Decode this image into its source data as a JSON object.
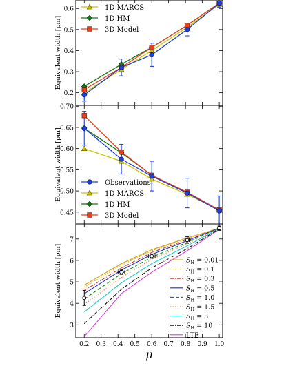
{
  "chart_data": [
    {
      "type": "line",
      "ylabel": "Equivalent width [pm]",
      "xlim": [
        0.15,
        1.02
      ],
      "ylim": [
        0.14,
        0.64
      ],
      "yticks": [
        0.2,
        0.3,
        0.4,
        0.5,
        0.6
      ],
      "ytick_labels": [
        "0.2",
        "0.3",
        "0.4",
        "0.5",
        "0.6"
      ],
      "legend_loc": "top-left",
      "series": [
        {
          "name": "Observations",
          "style": "obs",
          "color": "#1f3fd8",
          "x": [
            0.2,
            0.42,
            0.6,
            0.81,
            1.0
          ],
          "y": [
            0.19,
            0.32,
            0.38,
            0.5,
            0.625
          ],
          "err": [
            0.03,
            0.04,
            0.055,
            0.03,
            0.02
          ]
        },
        {
          "name": "1D MARCS",
          "style": "marcs",
          "color": "#c9c400",
          "x": [
            0.2,
            0.42,
            0.6,
            0.81,
            1.0
          ],
          "y": [
            0.2,
            0.31,
            0.4,
            0.51,
            0.62
          ]
        },
        {
          "name": "1D HM",
          "style": "hm",
          "color": "#117a11",
          "x": [
            0.2,
            0.42,
            0.6,
            0.81,
            1.0
          ],
          "y": [
            0.23,
            0.335,
            0.415,
            0.52,
            0.625
          ]
        },
        {
          "name": "3D Model",
          "style": "model3d",
          "color": "#e8401c",
          "x": [
            0.2,
            0.42,
            0.6,
            0.81,
            1.0
          ],
          "y": [
            0.215,
            0.32,
            0.415,
            0.52,
            0.625
          ]
        }
      ]
    },
    {
      "type": "line",
      "ylabel": "Equivalent width [pm]",
      "xlim": [
        0.15,
        1.02
      ],
      "ylim": [
        0.422,
        0.702
      ],
      "yticks": [
        0.45,
        0.5,
        0.55,
        0.6,
        0.65,
        0.7
      ],
      "ytick_labels": [
        "0.45",
        "0.50",
        "0.55",
        "0.60",
        "0.65",
        "0.70"
      ],
      "legend_loc": "bottom-left",
      "series": [
        {
          "name": "Observations",
          "style": "obs",
          "color": "#1f3fd8",
          "x": [
            0.2,
            0.42,
            0.6,
            0.81,
            1.0
          ],
          "y": [
            0.648,
            0.575,
            0.535,
            0.495,
            0.453
          ],
          "err": [
            0.04,
            0.035,
            0.035,
            0.035,
            0.035
          ]
        },
        {
          "name": "1D MARCS",
          "style": "marcs",
          "color": "#c9c400",
          "x": [
            0.2,
            0.42,
            0.6,
            0.81,
            1.0
          ],
          "y": [
            0.6,
            0.57,
            0.528,
            0.492,
            0.455
          ]
        },
        {
          "name": "1D HM",
          "style": "hm",
          "color": "#117a11",
          "x": [
            0.2,
            0.42,
            0.6,
            0.81,
            1.0
          ],
          "y": [
            0.648,
            0.59,
            0.537,
            0.495,
            0.455
          ]
        },
        {
          "name": "3D Model",
          "style": "model3d",
          "color": "#e8401c",
          "x": [
            0.2,
            0.42,
            0.6,
            0.81,
            1.0
          ],
          "y": [
            0.678,
            0.592,
            0.537,
            0.497,
            0.455
          ]
        }
      ]
    },
    {
      "type": "line",
      "xlabel": "μ",
      "ylabel": "Equivalent width [pm]",
      "xlim": [
        0.15,
        1.02
      ],
      "ylim": [
        2.4,
        7.7
      ],
      "xticks": [
        0.2,
        0.3,
        0.4,
        0.5,
        0.6,
        0.7,
        0.8,
        0.9,
        1.0
      ],
      "xtick_labels": [
        "0.2",
        "0.3",
        "0.4",
        "0.5",
        "0.6",
        "0.7",
        "0.8",
        "0.9",
        "1.0"
      ],
      "yticks": [
        3,
        4,
        5,
        6,
        7
      ],
      "ytick_labels": [
        "3",
        "4",
        "5",
        "6",
        "7"
      ],
      "legend_loc": "bottom-right",
      "observations": {
        "x": [
          0.2,
          0.42,
          0.6,
          0.81,
          1.0
        ],
        "y": [
          4.25,
          5.45,
          6.2,
          6.95,
          7.5
        ],
        "xerr": [
          0.005,
          0.02,
          0.02,
          0.012,
          0.005
        ],
        "yerr": [
          0.35,
          0.1,
          0.1,
          0.15,
          0.1
        ]
      },
      "series": [
        {
          "name": "0.01",
          "color": "#d4a300",
          "dash": "",
          "x": [
            0.2,
            0.42,
            0.6,
            0.81,
            1.0
          ],
          "y": [
            4.85,
            5.85,
            6.5,
            7.05,
            7.5
          ]
        },
        {
          "name": "0.1",
          "color": "#c9a200",
          "dash": "1.3,2.2",
          "x": [
            0.2,
            0.42,
            0.6,
            0.81,
            1.0
          ],
          "y": [
            4.75,
            5.78,
            6.45,
            7.02,
            7.5
          ]
        },
        {
          "name": "0.3",
          "color": "#e03020",
          "dash": "5,2,1,2",
          "x": [
            0.2,
            0.42,
            0.6,
            0.81,
            1.0
          ],
          "y": [
            4.6,
            5.65,
            6.37,
            6.97,
            7.5
          ]
        },
        {
          "name": "0.5",
          "color": "#1a2fd0",
          "dash": "",
          "x": [
            0.2,
            0.42,
            0.6,
            0.81,
            1.0
          ],
          "y": [
            4.45,
            5.55,
            6.28,
            6.92,
            7.5
          ]
        },
        {
          "name": "1.0",
          "color": "#118a11",
          "dash": "5,3",
          "x": [
            0.2,
            0.42,
            0.6,
            0.81,
            1.0
          ],
          "y": [
            4.2,
            5.38,
            6.15,
            6.85,
            7.5
          ]
        },
        {
          "name": "1.5",
          "color": "#e87a3a",
          "dash": "1.3,2.2",
          "x": [
            0.2,
            0.42,
            0.6,
            0.81,
            1.0
          ],
          "y": [
            3.95,
            5.2,
            6.05,
            6.78,
            7.5
          ]
        },
        {
          "name": "3",
          "color": "#1ec8c8",
          "dash": "",
          "x": [
            0.2,
            0.42,
            0.6,
            0.81,
            1.0
          ],
          "y": [
            3.6,
            4.95,
            5.85,
            6.68,
            7.5
          ]
        },
        {
          "name": "10",
          "color": "#111111",
          "dash": "5,2,1,2",
          "x": [
            0.2,
            0.42,
            0.6,
            0.81,
            1.0
          ],
          "y": [
            3.05,
            4.65,
            5.65,
            6.55,
            7.48
          ]
        },
        {
          "name": "LTE",
          "color": "#d43fd4",
          "dash": "",
          "x": [
            0.2,
            0.42,
            0.6,
            0.81,
            1.0
          ],
          "y": [
            2.45,
            4.45,
            5.45,
            6.45,
            7.45
          ]
        }
      ]
    }
  ]
}
